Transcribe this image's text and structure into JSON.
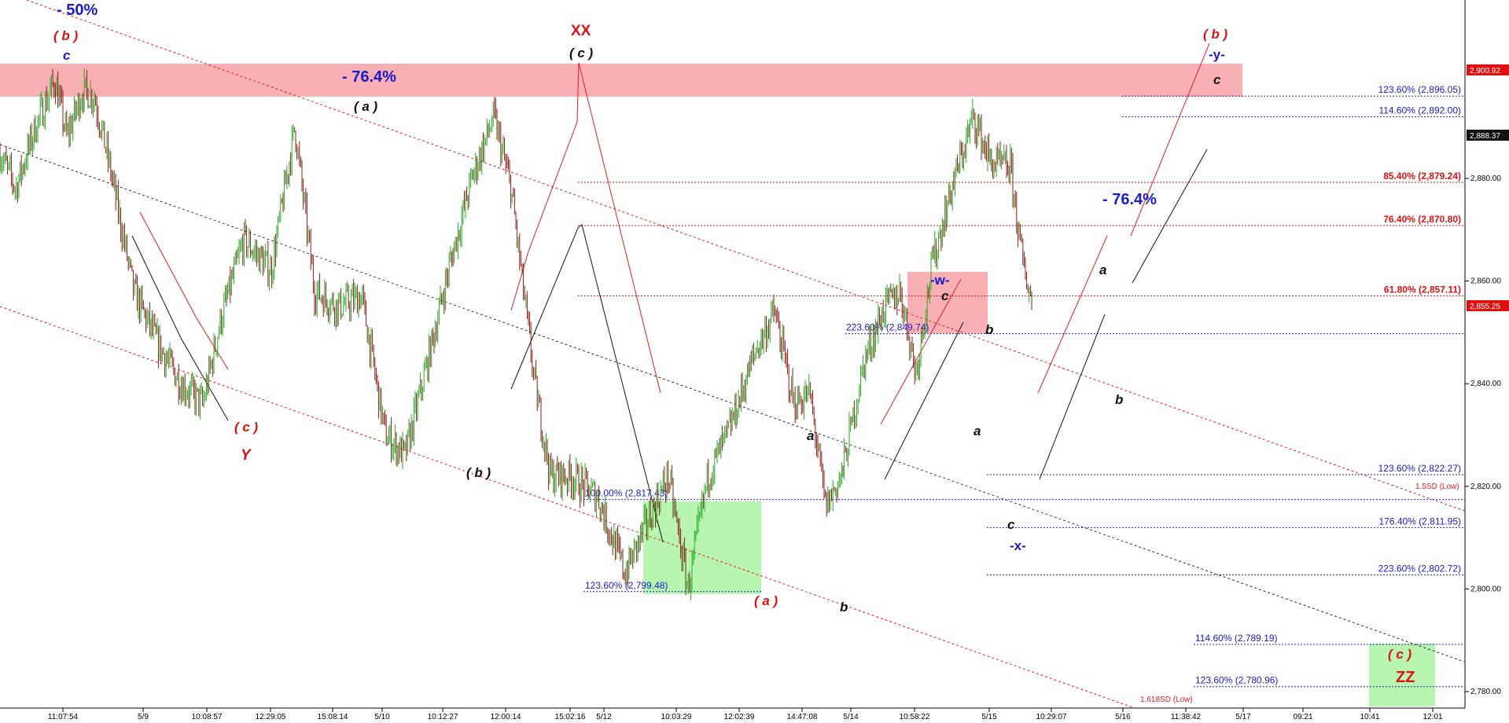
{
  "chart_data": {
    "type": "candlestick",
    "title": "",
    "xlabel": "",
    "ylabel": "",
    "ylim": [
      2775,
      2915
    ],
    "y_ticks": [
      2780,
      2800,
      2820,
      2840,
      2860,
      2880
    ],
    "y_tick_labels": [
      "2,780.00",
      "2,800.00",
      "2,820.00",
      "2,840.00",
      "2,860.00",
      "2,880.00"
    ],
    "x_tick_labels": [
      "11:07:54",
      "5/9",
      "10:08:57",
      "12:29:05",
      "15:08:14",
      "5/10",
      "10:12:27",
      "12:00:14",
      "15:02:16",
      "5/12",
      "10:03:29",
      "12:02:39",
      "14:47:08",
      "5/14",
      "10:58:22",
      "5/15",
      "10:29:07",
      "5/16",
      "11:38:42",
      "5/17",
      "09:21",
      "10:41",
      "12:01"
    ],
    "price_path": [
      [
        0,
        2885
      ],
      [
        20,
        2878
      ],
      [
        45,
        2890
      ],
      [
        70,
        2899
      ],
      [
        85,
        2888
      ],
      [
        105,
        2897
      ],
      [
        120,
        2896
      ],
      [
        140,
        2882
      ],
      [
        170,
        2858
      ],
      [
        200,
        2848
      ],
      [
        230,
        2840
      ],
      [
        258,
        2836
      ],
      [
        280,
        2852
      ],
      [
        310,
        2868
      ],
      [
        345,
        2862
      ],
      [
        375,
        2890
      ],
      [
        400,
        2858
      ],
      [
        430,
        2855
      ],
      [
        460,
        2857
      ],
      [
        490,
        2830
      ],
      [
        515,
        2826
      ],
      [
        545,
        2845
      ],
      [
        570,
        2862
      ],
      [
        600,
        2880
      ],
      [
        628,
        2892
      ],
      [
        650,
        2878
      ],
      [
        680,
        2840
      ],
      [
        700,
        2822
      ],
      [
        725,
        2822
      ],
      [
        760,
        2818
      ],
      [
        795,
        2803
      ],
      [
        820,
        2812
      ],
      [
        850,
        2822
      ],
      [
        875,
        2800
      ],
      [
        900,
        2822
      ],
      [
        925,
        2830
      ],
      [
        960,
        2846
      ],
      [
        985,
        2854
      ],
      [
        1010,
        2836
      ],
      [
        1030,
        2838
      ],
      [
        1050,
        2816
      ],
      [
        1070,
        2822
      ],
      [
        1100,
        2845
      ],
      [
        1125,
        2855
      ],
      [
        1145,
        2858
      ],
      [
        1165,
        2842
      ],
      [
        1185,
        2863
      ],
      [
        1210,
        2878
      ],
      [
        1238,
        2892
      ],
      [
        1260,
        2883
      ],
      [
        1285,
        2882
      ],
      [
        1300,
        2864
      ],
      [
        1312,
        2856
      ]
    ],
    "last_price": "2,855.25",
    "price_markers": [
      "2,900.92",
      "2,888.37"
    ],
    "fib_levels": [
      {
        "label": "123.60% (2,896.05)",
        "value": 2896.05,
        "color": "#1a1acc"
      },
      {
        "label": "114.60% (2,892.00)",
        "value": 2892.0,
        "color": "#1a1acc"
      },
      {
        "label": "85.40% (2,879.24)",
        "value": 2879.24,
        "color": "#e01010"
      },
      {
        "label": "76.40% (2,870.80)",
        "value": 2870.8,
        "color": "#e01010"
      },
      {
        "label": "61.80% (2,857.11)",
        "value": 2857.11,
        "color": "#e01010"
      },
      {
        "label": "223.60% (2,849.74)",
        "value": 2849.74,
        "color": "#1a1acc"
      },
      {
        "label": "123.60% (2,822.27)",
        "value": 2822.27,
        "color": "#1a1acc"
      },
      {
        "label": "100.00% (2,817.43)",
        "value": 2817.43,
        "color": "#1a1acc"
      },
      {
        "label": "176.40% (2,811.95)",
        "value": 2811.95,
        "color": "#1a1acc"
      },
      {
        "label": "223.60% (2,802.72)",
        "value": 2802.72,
        "color": "#1a1acc"
      },
      {
        "label": "123.60% (2,799.48)",
        "value": 2799.48,
        "color": "#1a1acc"
      },
      {
        "label": "114.60% (2,789.19)",
        "value": 2789.19,
        "color": "#1a1acc"
      },
      {
        "label": "123.60% (2,780.96)",
        "value": 2780.96,
        "color": "#1a1acc"
      }
    ],
    "channel_labels": [
      "1.5SD (Low)",
      "1.618SD (Low)"
    ],
    "annotations": {
      "pct_50": "- 50%",
      "pct_764_left": "- 76.4%",
      "pct_764_right": "- 76.4%",
      "wave_b_left": "( b )",
      "wave_c_left": "c",
      "wave_c_Y": "( c )",
      "wave_Y": "Y",
      "wave_a_paren": "( a )",
      "wave_b_paren": "( b )",
      "wave_XX": "XX",
      "wave_c_XX": "( c )",
      "wave_a_red": "( a )",
      "wave_a_mid": "a",
      "wave_b_low": "b",
      "wave_w": "-w-",
      "wave_c_w": "c",
      "wave_b_w": "b",
      "wave_a_w": "a",
      "wave_c_x": "c",
      "wave_x": "-x-",
      "wave_a_y": "a",
      "wave_b_y": "b",
      "wave_b_right": "( b )",
      "wave_y": "-y-",
      "wave_c_y": "c",
      "wave_c_ZZ": "( c )",
      "wave_ZZ": "ZZ"
    },
    "colors": {
      "up": "#22aa22",
      "down": "#8b1a1a",
      "resistance_zone": "#f8b0b4",
      "support_zone": "#b8f5b0",
      "channel": "#e02020",
      "midline": "#333333"
    }
  }
}
